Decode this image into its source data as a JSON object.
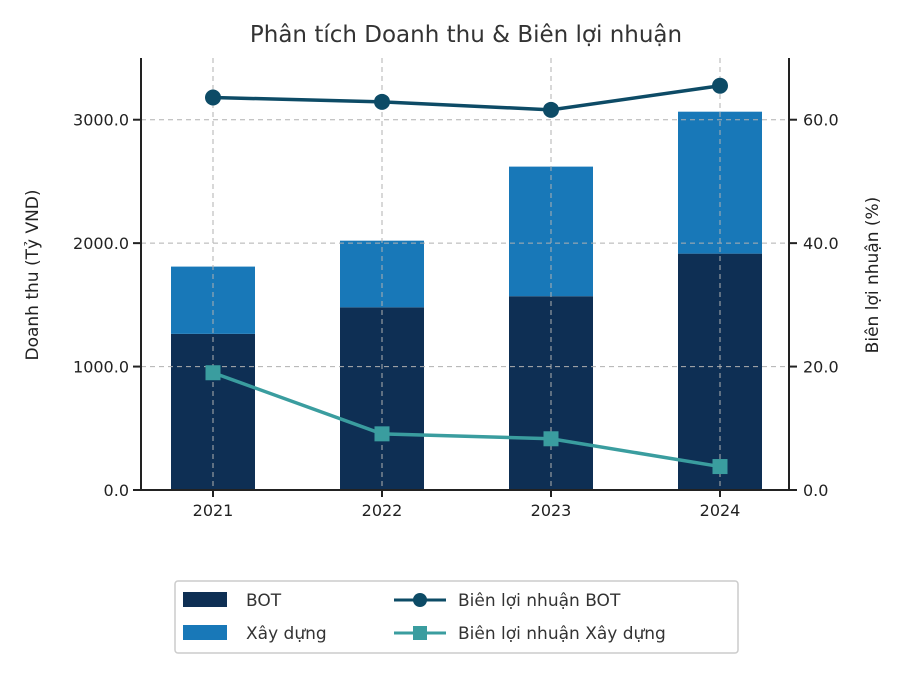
{
  "chart_data": {
    "type": "bar",
    "title": "Phân tích Doanh thu & Biên lợi nhuận",
    "categories": [
      "2021",
      "2022",
      "2023",
      "2024"
    ],
    "ylabel": "Doanh thu (Tỷ VND)",
    "y2label": "Biên lợi nhuận (%)",
    "ylim": [
      0,
      3500
    ],
    "y2lim": [
      0,
      70
    ],
    "yticks": [
      "0.0",
      "1000.0",
      "2000.0",
      "3000.0"
    ],
    "y2ticks": [
      "0.0",
      "20.0",
      "40.0",
      "60.0"
    ],
    "grid": true,
    "legend_position": "bottom-center",
    "bar_series": [
      {
        "name": "BOT",
        "values": [
          1265,
          1480,
          1570,
          1915
        ],
        "color": "#0e2f54"
      },
      {
        "name": "Xây dựng",
        "values": [
          545,
          540,
          1050,
          1150
        ],
        "color": "#1878b8"
      }
    ],
    "line_series": [
      {
        "name": "Biên lợi nhuận BOT",
        "values": [
          63.6,
          62.9,
          61.6,
          65.5
        ],
        "color": "#0d4b66",
        "marker": "circle"
      },
      {
        "name": "Biên lợi nhuận Xây dựng",
        "values": [
          19.0,
          9.1,
          8.3,
          3.8
        ],
        "color": "#3a9d9f",
        "marker": "square"
      }
    ]
  }
}
